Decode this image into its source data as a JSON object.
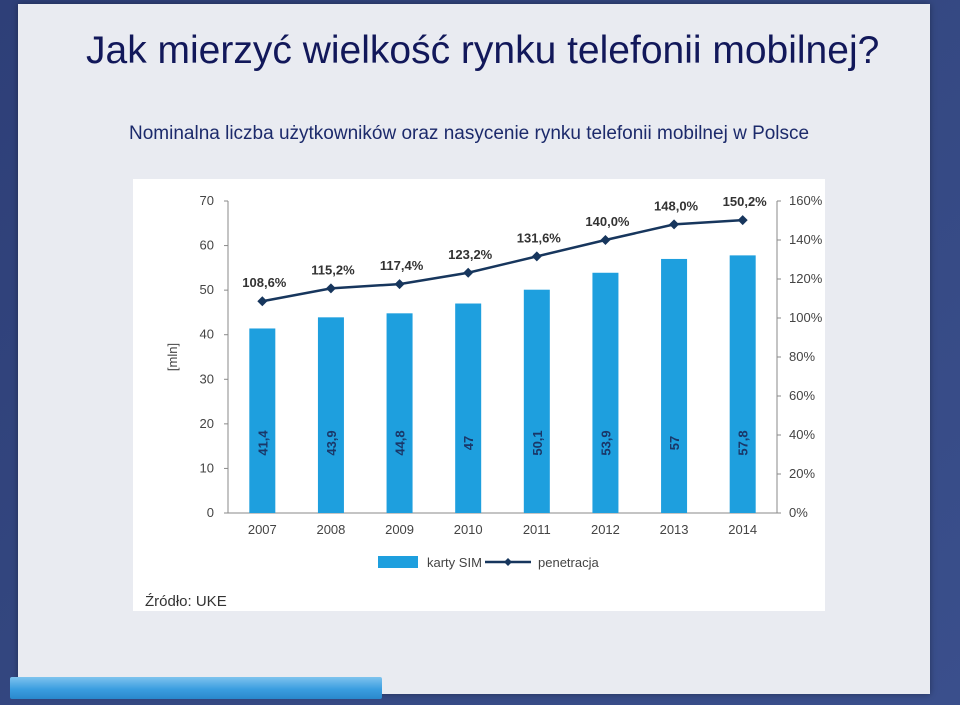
{
  "slide": {
    "title": "Jak mierzyć wielkość rynku telefonii mobilnej?",
    "subtitle": "Nominalna liczba użytkowników oraz nasycenie rynku telefonii mobilnej w Polsce",
    "source": "Źródło: UKE"
  },
  "colors": {
    "bar": "#1e9fde",
    "line": "#17365d",
    "title": "#12185a"
  },
  "chart_data": {
    "type": "bar",
    "categories": [
      "2007",
      "2008",
      "2009",
      "2010",
      "2011",
      "2012",
      "2013",
      "2014"
    ],
    "series": [
      {
        "name": "karty SIM",
        "type": "bar",
        "axis": "left",
        "values": [
          41.4,
          43.9,
          44.8,
          47,
          50.1,
          53.9,
          57,
          57.8
        ],
        "labels": [
          "41,4",
          "43,9",
          "44,8",
          "47",
          "50,1",
          "53,9",
          "57",
          "57,8"
        ]
      },
      {
        "name": "penetracja",
        "type": "line",
        "axis": "right",
        "values": [
          108.6,
          115.2,
          117.4,
          123.2,
          131.6,
          140.0,
          148.0,
          150.2
        ],
        "labels": [
          "108,6%",
          "115,2%",
          "117,4%",
          "123,2%",
          "131,6%",
          "140,0%",
          "148,0%",
          "150,2%"
        ]
      }
    ],
    "ylabel": "[mln]",
    "ylim": [
      0,
      70
    ],
    "yticks": [
      "0",
      "10",
      "20",
      "30",
      "40",
      "50",
      "60",
      "70"
    ],
    "y2lim": [
      0,
      160
    ],
    "y2ticks": [
      "0%",
      "20%",
      "40%",
      "60%",
      "80%",
      "100%",
      "120%",
      "140%",
      "160%"
    ],
    "legend": "bottom",
    "grid": false
  }
}
